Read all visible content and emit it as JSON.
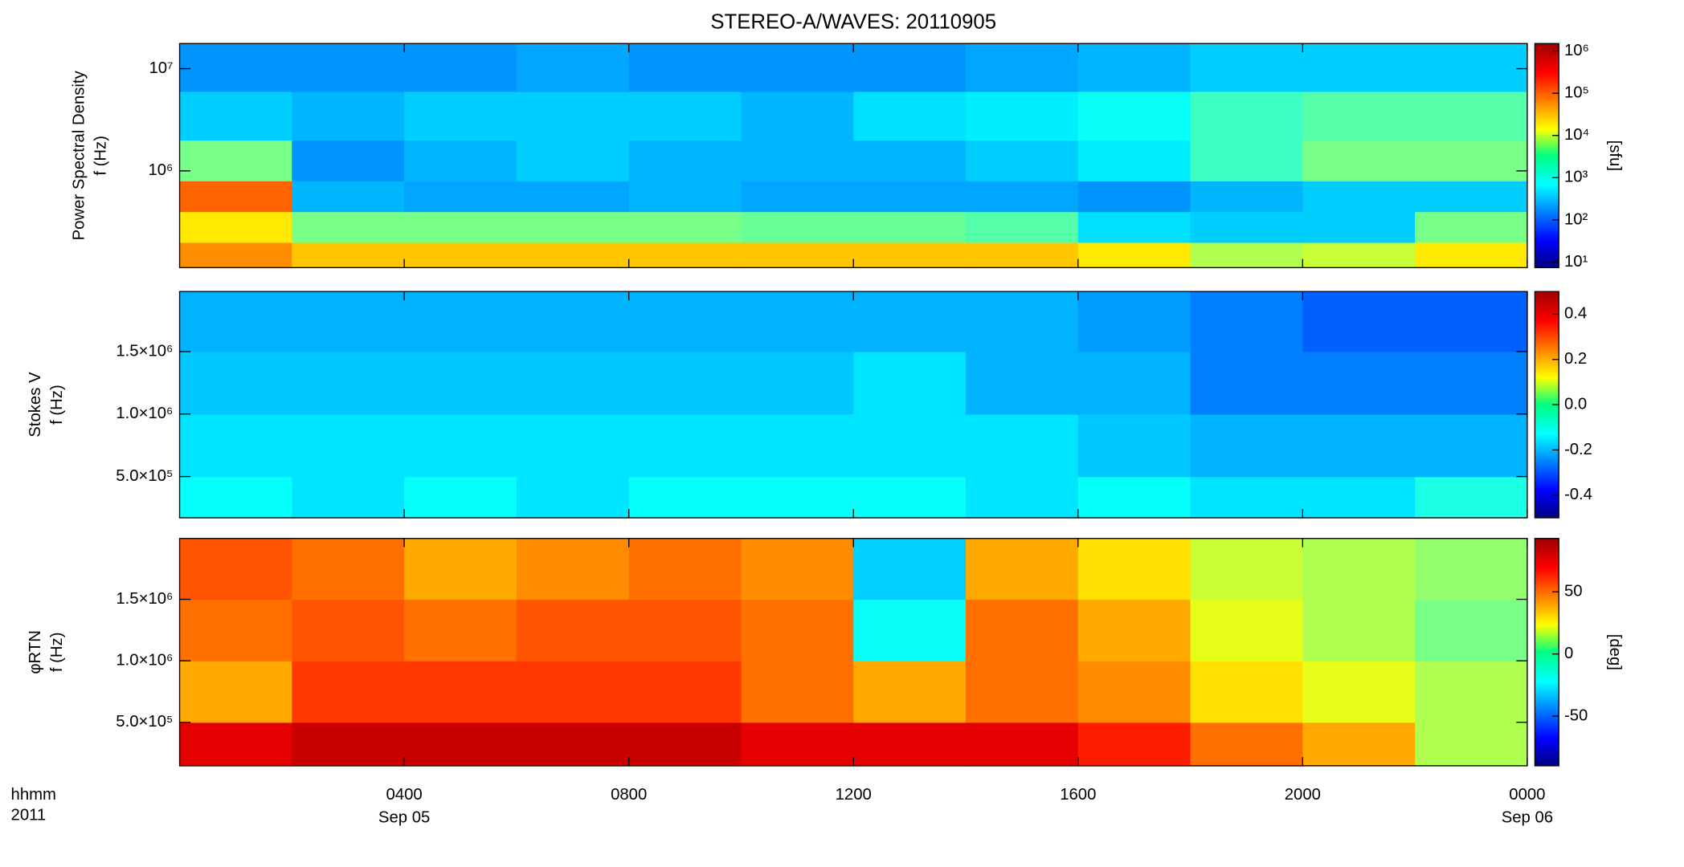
{
  "chart_data": [
    {
      "type": "heatmap",
      "title": "STEREO-A/WAVES: 20110905",
      "ylabel": [
        "Power Spectral Density",
        "f (Hz)"
      ],
      "ylog": true,
      "xlim": [
        0,
        24
      ],
      "ylim": [
        113000,
        17600000
      ],
      "yticks": [
        {
          "value": 1000000,
          "label": "10⁶"
        },
        {
          "value": 10000000,
          "label": "10⁷"
        }
      ],
      "x_edges": [
        0,
        2,
        4,
        6,
        8,
        10,
        12,
        14,
        16,
        18,
        20,
        22,
        24
      ],
      "y_edges": [
        113000,
        200000,
        400000,
        800000,
        2000000,
        6000000,
        17600000
      ],
      "z": [
        [
          60000,
          30000,
          30000,
          30000,
          30000,
          30000,
          30000,
          30000,
          20000,
          6000,
          8000,
          20000
        ],
        [
          20000,
          3000,
          3000,
          3000,
          3000,
          2500,
          2500,
          2000,
          500,
          400,
          400,
          3000
        ],
        [
          100000,
          300,
          250,
          250,
          300,
          250,
          250,
          250,
          200,
          300,
          400,
          400
        ],
        [
          3000,
          200,
          300,
          400,
          300,
          300,
          300,
          400,
          600,
          1500,
          3000,
          3000
        ],
        [
          400,
          300,
          400,
          400,
          400,
          300,
          500,
          600,
          800,
          1500,
          2000,
          2000
        ],
        [
          200,
          200,
          200,
          250,
          200,
          200,
          200,
          250,
          300,
          400,
          400,
          400
        ]
      ],
      "clog": true,
      "clim": [
        7.4,
        1500000
      ],
      "clabel": "[sfu]",
      "cticks": [
        {
          "value": 10,
          "label": "10¹"
        },
        {
          "value": 100,
          "label": "10²"
        },
        {
          "value": 1000,
          "label": "10³"
        },
        {
          "value": 10000,
          "label": "10⁴"
        },
        {
          "value": 100000,
          "label": "10⁵"
        },
        {
          "value": 1000000,
          "label": "10⁶"
        }
      ]
    },
    {
      "type": "heatmap",
      "ylabel": [
        "Stokes V",
        "f (Hz)"
      ],
      "ylog": false,
      "xlim": [
        0,
        24
      ],
      "ylim": [
        170000,
        1980000
      ],
      "yticks": [
        {
          "value": 500000,
          "label": "5.0×10⁵"
        },
        {
          "value": 1000000,
          "label": "1.0×10⁶"
        },
        {
          "value": 1500000,
          "label": "1.5×10⁶"
        }
      ],
      "x_edges": [
        0,
        2,
        4,
        6,
        8,
        10,
        12,
        14,
        16,
        18,
        20,
        22,
        24
      ],
      "y_edges": [
        170000,
        500000,
        1000000,
        1500000,
        1980000
      ],
      "z": [
        [
          -0.12,
          -0.15,
          -0.12,
          -0.15,
          -0.12,
          -0.12,
          -0.12,
          -0.15,
          -0.12,
          -0.15,
          -0.15,
          -0.1
        ],
        [
          -0.15,
          -0.15,
          -0.15,
          -0.15,
          -0.15,
          -0.15,
          -0.15,
          -0.15,
          -0.18,
          -0.2,
          -0.2,
          -0.2
        ],
        [
          -0.18,
          -0.18,
          -0.18,
          -0.18,
          -0.18,
          -0.18,
          -0.15,
          -0.2,
          -0.2,
          -0.25,
          -0.25,
          -0.25
        ],
        [
          -0.2,
          -0.2,
          -0.2,
          -0.2,
          -0.2,
          -0.2,
          -0.2,
          -0.2,
          -0.22,
          -0.25,
          -0.28,
          -0.28
        ]
      ],
      "clog": false,
      "clim": [
        -0.5,
        0.5
      ],
      "cticks": [
        -0.4,
        -0.2,
        {
          "value": 0,
          "label": "0.0"
        },
        0.2,
        0.4
      ]
    },
    {
      "type": "heatmap",
      "ylabel": [
        "φRTN",
        "f (Hz)"
      ],
      "ylog": false,
      "xlim": [
        0,
        24
      ],
      "ylim": [
        146000,
        1995000
      ],
      "yticks": [
        {
          "value": 500000,
          "label": "5.0×10⁵"
        },
        {
          "value": 1000000,
          "label": "1.0×10⁶"
        },
        {
          "value": 1500000,
          "label": "1.5×10⁶"
        }
      ],
      "x_edges": [
        0,
        2,
        4,
        6,
        8,
        10,
        12,
        14,
        16,
        18,
        20,
        22,
        24
      ],
      "y_edges": [
        146000,
        500000,
        1000000,
        1500000,
        1995000
      ],
      "z": [
        [
          75,
          80,
          80,
          80,
          80,
          75,
          75,
          75,
          65,
          50,
          40,
          10
        ],
        [
          40,
          60,
          60,
          60,
          60,
          50,
          40,
          50,
          45,
          30,
          20,
          10
        ],
        [
          50,
          55,
          50,
          55,
          55,
          50,
          -20,
          50,
          40,
          20,
          10,
          0
        ],
        [
          55,
          50,
          40,
          45,
          50,
          45,
          -30,
          40,
          30,
          15,
          10,
          5
        ]
      ],
      "clog": false,
      "clim": [
        -90,
        93
      ],
      "clabel": "[deg]",
      "cticks": [
        -50,
        0,
        50
      ],
      "xticks": [
        {
          "value": 4,
          "label": "0400"
        },
        {
          "value": 8,
          "label": "0800"
        },
        {
          "value": 12,
          "label": "1200"
        },
        {
          "value": 16,
          "label": "1600"
        },
        {
          "value": 20,
          "label": "2000"
        },
        {
          "value": 24,
          "label": "0000"
        }
      ],
      "date_labels": [
        {
          "value": 4,
          "label": "Sep 05"
        },
        {
          "value": 24,
          "label": "Sep 06"
        }
      ],
      "xlabel": "hhmm",
      "year": "2011"
    }
  ]
}
